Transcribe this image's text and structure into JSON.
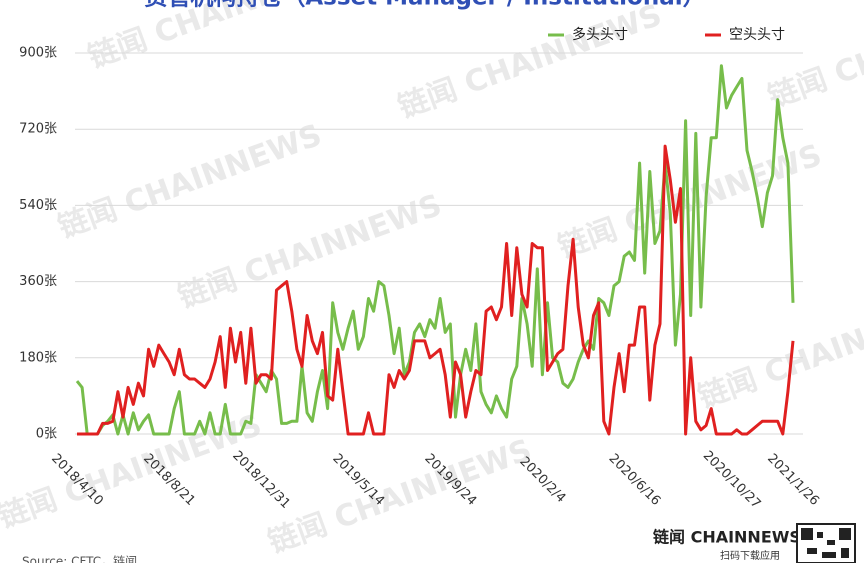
{
  "chart_data": {
    "type": "line",
    "title": "资管机构持仓（Asset Manager / Institutional）",
    "source": "Source: CFTC，链闻",
    "watermark": "链闻 CHAINNEWS",
    "logo": "链闻 CHAINNEWS",
    "logo_caption": "扫码下载应用",
    "categories": [
      "2018/4/10",
      null,
      null,
      null,
      null,
      null,
      null,
      null,
      null,
      null,
      null,
      null,
      null,
      null,
      null,
      null,
      null,
      null,
      "2018/8/21",
      null,
      null,
      null,
      null,
      null,
      null,
      null,
      null,
      null,
      null,
      null,
      null,
      null,
      null,
      null,
      null,
      null,
      "2018/12/31",
      null,
      null,
      null,
      null,
      null,
      null,
      null,
      null,
      null,
      null,
      null,
      null,
      null,
      null,
      null,
      null,
      null,
      null,
      "2019/5/14",
      null,
      null,
      null,
      null,
      null,
      null,
      null,
      null,
      null,
      null,
      null,
      null,
      null,
      null,
      null,
      null,
      null,
      "2019/9/24",
      null,
      null,
      null,
      null,
      null,
      null,
      null,
      null,
      null,
      null,
      null,
      null,
      null,
      null,
      null,
      null,
      null,
      "2020/2/4",
      null,
      null,
      null,
      null,
      null,
      null,
      null,
      null,
      null,
      null,
      null,
      null,
      null,
      null,
      null,
      null,
      null,
      "2020/6/16",
      null,
      null,
      null,
      null,
      null,
      null,
      null,
      null,
      null,
      null,
      null,
      null,
      null,
      null,
      null,
      null,
      null,
      null,
      "2020/10/27",
      null,
      null,
      null,
      null,
      null,
      null,
      null,
      null,
      null,
      null,
      null,
      "2021/1/26"
    ],
    "series": [
      {
        "name": "多头头寸",
        "color": "#77bd4b",
        "values": [
          125,
          110,
          0,
          0,
          0,
          20,
          30,
          45,
          0,
          45,
          0,
          50,
          10,
          30,
          45,
          0,
          0,
          0,
          0,
          60,
          100,
          0,
          0,
          0,
          30,
          0,
          50,
          0,
          0,
          70,
          0,
          0,
          0,
          30,
          25,
          140,
          120,
          100,
          150,
          130,
          25,
          25,
          30,
          30,
          160,
          50,
          30,
          100,
          150,
          60,
          310,
          240,
          200,
          250,
          290,
          200,
          230,
          320,
          290,
          360,
          350,
          280,
          190,
          250,
          140,
          170,
          240,
          260,
          230,
          270,
          250,
          320,
          240,
          260,
          40,
          140,
          200,
          150,
          260,
          100,
          70,
          50,
          90,
          60,
          40,
          130,
          160,
          320,
          260,
          160,
          390,
          140,
          310,
          180,
          170,
          120,
          110,
          130,
          170,
          200,
          220,
          200,
          320,
          310,
          280,
          350,
          360,
          420,
          430,
          410,
          640,
          380,
          620,
          450,
          480,
          640,
          520,
          210,
          330,
          740,
          280,
          710,
          300,
          560,
          700,
          700,
          870,
          770,
          800,
          820,
          840,
          670,
          620,
          560,
          490,
          570,
          610,
          790,
          700,
          640,
          310
        ]
      },
      {
        "name": "空头头寸",
        "color": "#e02020",
        "values": [
          0,
          0,
          0,
          0,
          0,
          25,
          25,
          30,
          100,
          40,
          110,
          70,
          120,
          90,
          200,
          160,
          210,
          190,
          170,
          140,
          200,
          140,
          130,
          130,
          120,
          110,
          130,
          170,
          230,
          110,
          250,
          170,
          240,
          120,
          250,
          120,
          140,
          140,
          130,
          340,
          350,
          360,
          290,
          200,
          160,
          280,
          220,
          190,
          240,
          90,
          80,
          200,
          100,
          0,
          0,
          0,
          0,
          50,
          0,
          0,
          0,
          140,
          110,
          150,
          130,
          150,
          220,
          220,
          220,
          180,
          190,
          200,
          140,
          40,
          170,
          140,
          40,
          100,
          150,
          140,
          290,
          300,
          270,
          300,
          450,
          280,
          440,
          330,
          300,
          450,
          440,
          440,
          150,
          170,
          190,
          200,
          350,
          460,
          300,
          210,
          180,
          280,
          310,
          30,
          0,
          110,
          190,
          100,
          210,
          210,
          300,
          300,
          80,
          210,
          260,
          680,
          600,
          500,
          580,
          0,
          180,
          30,
          10,
          20,
          60,
          0,
          0,
          0,
          0,
          10,
          0,
          0,
          10,
          20,
          30,
          30,
          30,
          30,
          0,
          100,
          220
        ]
      }
    ],
    "ylim": [
      0,
      900
    ],
    "yticks": [
      {
        "value": 0,
        "label": "0张"
      },
      {
        "value": 180,
        "label": "180张"
      },
      {
        "value": 360,
        "label": "360张"
      },
      {
        "value": 540,
        "label": "540张"
      },
      {
        "value": 720,
        "label": "720张"
      },
      {
        "value": 900,
        "label": "900张"
      }
    ],
    "grid": true
  }
}
